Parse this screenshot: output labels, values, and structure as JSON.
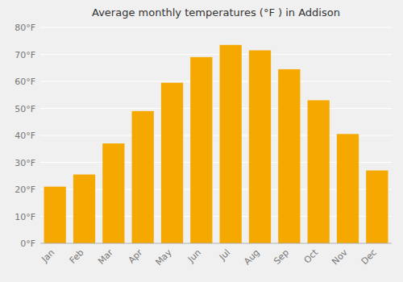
{
  "chart_data": {
    "type": "bar",
    "title": "Average monthly temperatures (°F ) in Addison",
    "categories": [
      "Jan",
      "Feb",
      "Mar",
      "Apr",
      "May",
      "Jun",
      "Jul",
      "Aug",
      "Sep",
      "Oct",
      "Nov",
      "Dec"
    ],
    "values": [
      21,
      25.5,
      37,
      49,
      59.5,
      69,
      73.5,
      71.5,
      64.5,
      53,
      40.5,
      27
    ],
    "color": "#F5A800",
    "ylim": [
      0,
      80
    ],
    "yticks": [
      {
        "value": 0,
        "label": "0°F"
      },
      {
        "value": 10,
        "label": "10°F"
      },
      {
        "value": 20,
        "label": "20°F"
      },
      {
        "value": 30,
        "label": "30°F"
      },
      {
        "value": 40,
        "label": "40°F"
      },
      {
        "value": 50,
        "label": "50°F"
      },
      {
        "value": 60,
        "label": "60°F"
      },
      {
        "value": 70,
        "label": "70°F"
      },
      {
        "value": 80,
        "label": "80°F"
      }
    ],
    "grid": true
  }
}
